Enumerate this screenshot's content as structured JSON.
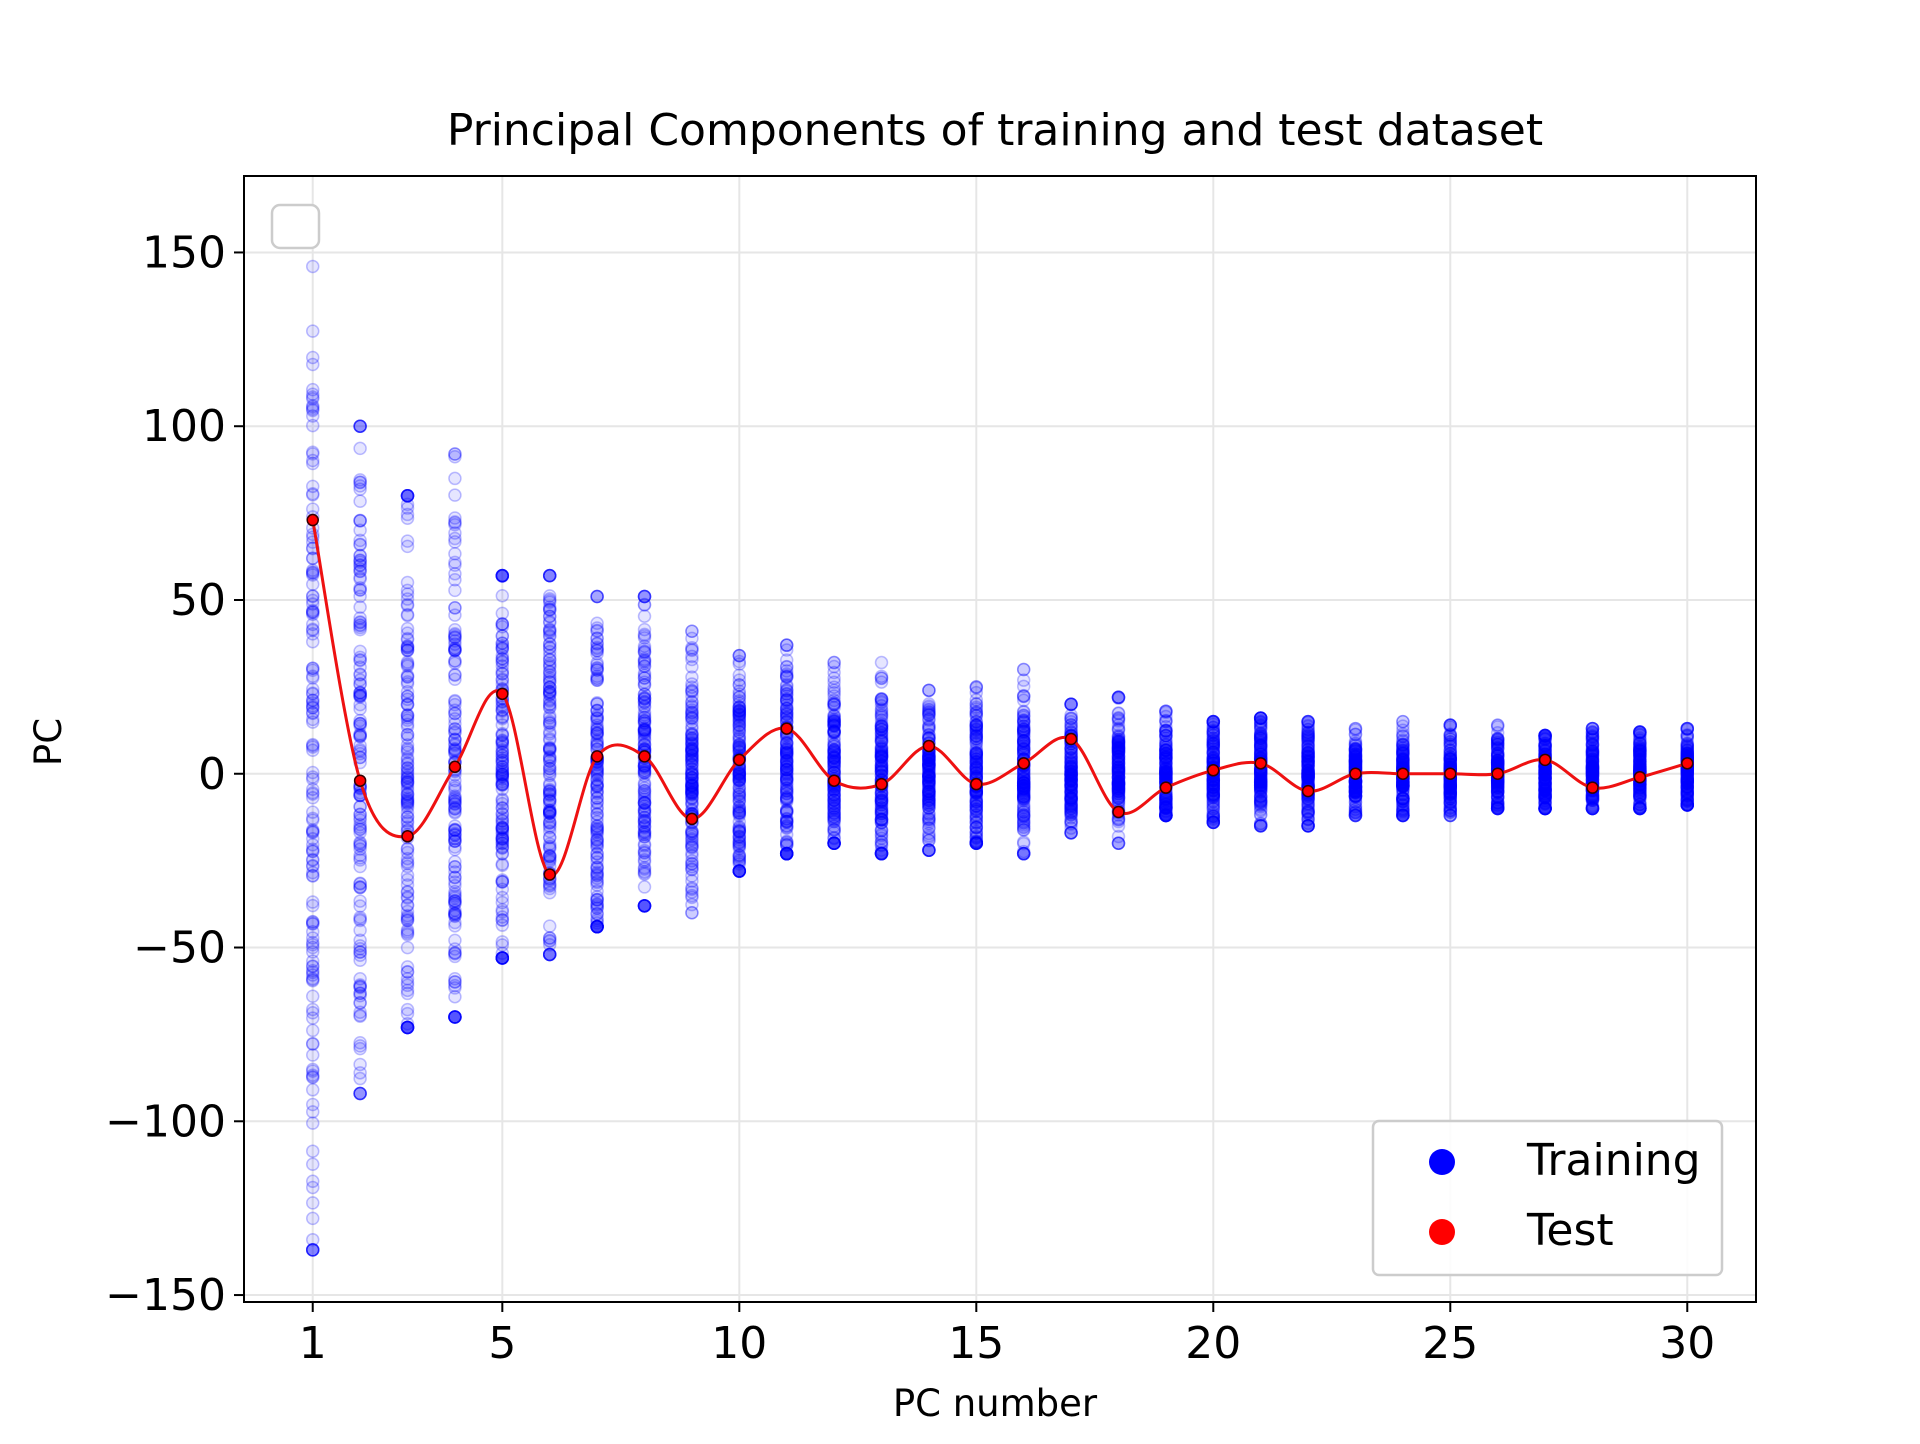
{
  "colors": {
    "training": "#0000ff",
    "test": "#ff0000",
    "test_line": "#ee1111",
    "grid": "#e6e6e6",
    "axes": "#000000"
  },
  "chart_data": {
    "type": "scatter",
    "title": "Principal Components of training and test dataset",
    "xlabel": "PC number",
    "ylabel": "PC",
    "xlim": [
      -0.45,
      31.45
    ],
    "ylim": [
      -152,
      172
    ],
    "xticks": [
      1,
      5,
      10,
      15,
      20,
      25,
      30
    ],
    "xtick_labels": [
      "1",
      "5",
      "10",
      "15",
      "20",
      "25",
      "30"
    ],
    "yticks": [
      -150,
      -100,
      -50,
      0,
      50,
      100,
      150
    ],
    "ytick_labels": [
      "−150",
      "−100",
      "−50",
      "0",
      "50",
      "100",
      "150"
    ],
    "grid": true,
    "legend": {
      "placement": "lower-right",
      "entries": [
        "Training",
        "Test"
      ]
    },
    "series": [
      {
        "name": "Training",
        "kind": "scatter",
        "x": [
          1,
          2,
          3,
          4,
          5,
          6,
          7,
          8,
          9,
          10,
          11,
          12,
          13,
          14,
          15,
          16,
          17,
          18,
          19,
          20,
          21,
          22,
          23,
          24,
          25,
          26,
          27,
          28,
          29,
          30
        ],
        "y_min": [
          -137,
          -92,
          -73,
          -70,
          -53,
          -52,
          -44,
          -38,
          -40,
          -28,
          -23,
          -20,
          -23,
          -22,
          -20,
          -23,
          -17,
          -20,
          -12,
          -14,
          -15,
          -15,
          -12,
          -12,
          -12,
          -10,
          -10,
          -10,
          -10,
          -9
        ],
        "y_max": [
          158,
          100,
          80,
          92,
          57,
          57,
          51,
          51,
          41,
          34,
          37,
          32,
          32,
          24,
          25,
          30,
          20,
          22,
          18,
          15,
          16,
          15,
          13,
          15,
          14,
          14,
          11,
          13,
          12,
          13
        ],
        "y_spread": [
          45,
          35,
          28,
          26,
          22,
          20,
          17,
          15,
          13,
          11,
          10,
          9,
          8,
          7,
          7,
          7,
          6,
          6,
          5,
          5,
          5,
          5,
          4,
          4,
          4,
          4,
          4,
          4,
          4,
          4
        ]
      },
      {
        "name": "Test",
        "kind": "line+markers",
        "x": [
          1,
          2,
          3,
          4,
          5,
          6,
          7,
          8,
          9,
          10,
          11,
          12,
          13,
          14,
          15,
          16,
          17,
          18,
          19,
          20,
          21,
          22,
          23,
          24,
          25,
          26,
          27,
          28,
          29,
          30
        ],
        "y": [
          73,
          -2,
          -18,
          2,
          23,
          -29,
          5,
          5,
          -13,
          4,
          13,
          -2,
          -3,
          8,
          -3,
          3,
          10,
          -11,
          -4,
          1,
          3,
          -5,
          0,
          0,
          0,
          0,
          4,
          -4,
          -1,
          3
        ]
      }
    ]
  }
}
